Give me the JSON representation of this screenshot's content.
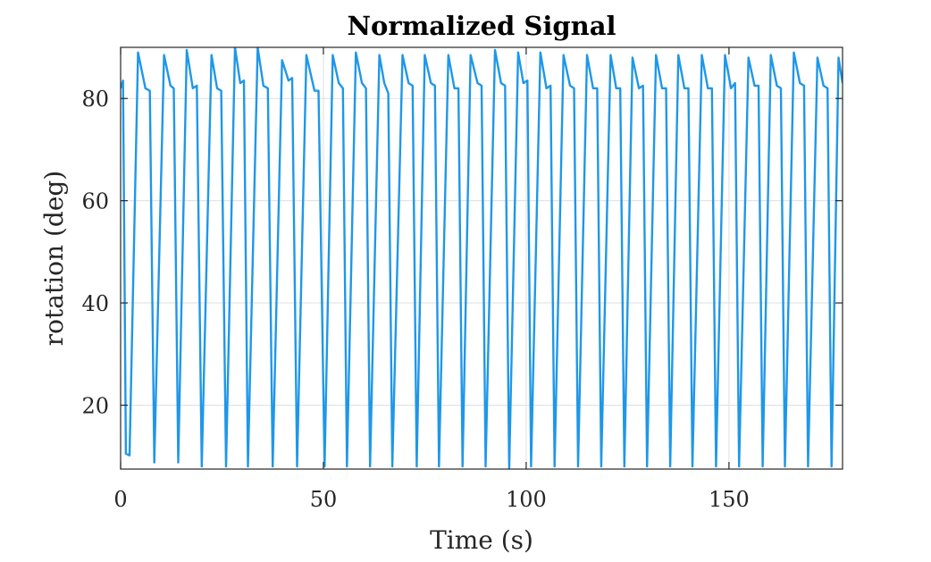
{
  "chart_data": {
    "type": "line",
    "title": "Normalized Signal",
    "xlabel": "Time (s)",
    "ylabel": "rotation (deg)",
    "xlim": [
      0,
      178
    ],
    "ylim": [
      7.5,
      90
    ],
    "xticks": [
      0,
      50,
      100,
      150
    ],
    "xtick_labels": [
      "0",
      "50",
      "100",
      "150"
    ],
    "yticks": [
      20,
      40,
      60,
      80
    ],
    "ytick_labels": [
      "20",
      "40",
      "60",
      "80"
    ],
    "grid": true,
    "legend": "none",
    "series": [
      {
        "color": "#1f97e8",
        "x": [
          0.0,
          0.6,
          1.3,
          2.2,
          4.3,
          6.1,
          7.2,
          8.3,
          10.7,
          12.3,
          13.1,
          14.2,
          16.3,
          17.8,
          18.8,
          20.0,
          22.4,
          23.8,
          24.8,
          26.0,
          28.2,
          29.5,
          30.4,
          31.4,
          33.8,
          35.2,
          36.3,
          37.5,
          39.8,
          41.4,
          42.3,
          43.5,
          45.8,
          47.8,
          48.8,
          50.3,
          52.3,
          53.8,
          54.8,
          55.8,
          58.0,
          59.5,
          60.5,
          61.5,
          63.8,
          65.0,
          66.0,
          67.0,
          69.5,
          71.0,
          72.0,
          73.0,
          75.0,
          76.5,
          77.5,
          78.5,
          80.8,
          82.3,
          83.3,
          84.3,
          86.3,
          88.0,
          89.0,
          90.0,
          92.3,
          93.8,
          94.8,
          95.8,
          98.0,
          99.3,
          100.3,
          101.2,
          103.5,
          105.0,
          106.0,
          107.0,
          109.2,
          110.8,
          111.8,
          112.8,
          115.0,
          116.5,
          117.5,
          118.5,
          120.8,
          122.2,
          123.2,
          124.2,
          126.2,
          127.8,
          128.8,
          129.8,
          132.0,
          133.5,
          134.5,
          135.5,
          137.5,
          139.0,
          140.0,
          141.0,
          143.3,
          144.8,
          145.8,
          146.8,
          149.0,
          150.5,
          151.5,
          152.5,
          154.8,
          156.3,
          157.3,
          158.3,
          160.3,
          161.8,
          162.8,
          163.8,
          166.0,
          167.5,
          168.5,
          169.5,
          171.8,
          173.3,
          174.3,
          175.3,
          177.0,
          178.0
        ],
        "y": [
          82.0,
          83.5,
          10.5,
          10.2,
          89.0,
          82.0,
          81.5,
          8.8,
          88.5,
          82.5,
          82.0,
          8.8,
          89.5,
          82.0,
          82.5,
          8.0,
          88.5,
          82.0,
          81.5,
          8.0,
          90.0,
          83.0,
          83.5,
          8.0,
          90.0,
          82.5,
          82.0,
          8.0,
          87.5,
          83.5,
          84.0,
          8.0,
          88.5,
          81.5,
          81.5,
          8.0,
          88.5,
          83.0,
          82.0,
          8.0,
          89.0,
          83.0,
          82.0,
          8.0,
          88.5,
          83.0,
          81.0,
          8.0,
          88.5,
          83.0,
          82.5,
          8.0,
          88.5,
          83.0,
          82.5,
          8.0,
          88.5,
          82.0,
          82.0,
          8.0,
          88.5,
          83.0,
          82.5,
          8.0,
          89.5,
          83.0,
          82.5,
          7.5,
          89.0,
          83.0,
          83.5,
          8.0,
          89.0,
          82.0,
          82.5,
          8.0,
          88.5,
          82.5,
          82.0,
          8.0,
          88.5,
          82.0,
          82.0,
          8.0,
          88.5,
          82.0,
          82.0,
          8.0,
          88.0,
          82.0,
          82.5,
          8.0,
          88.5,
          82.0,
          82.0,
          8.0,
          88.5,
          82.0,
          82.0,
          8.0,
          88.5,
          82.0,
          82.0,
          8.0,
          88.5,
          82.0,
          83.0,
          8.0,
          88.0,
          82.5,
          82.5,
          8.0,
          88.5,
          82.5,
          82.0,
          8.0,
          89.0,
          83.0,
          82.5,
          8.0,
          88.0,
          82.5,
          82.0,
          8.0,
          88.0,
          83.0
        ]
      }
    ]
  }
}
